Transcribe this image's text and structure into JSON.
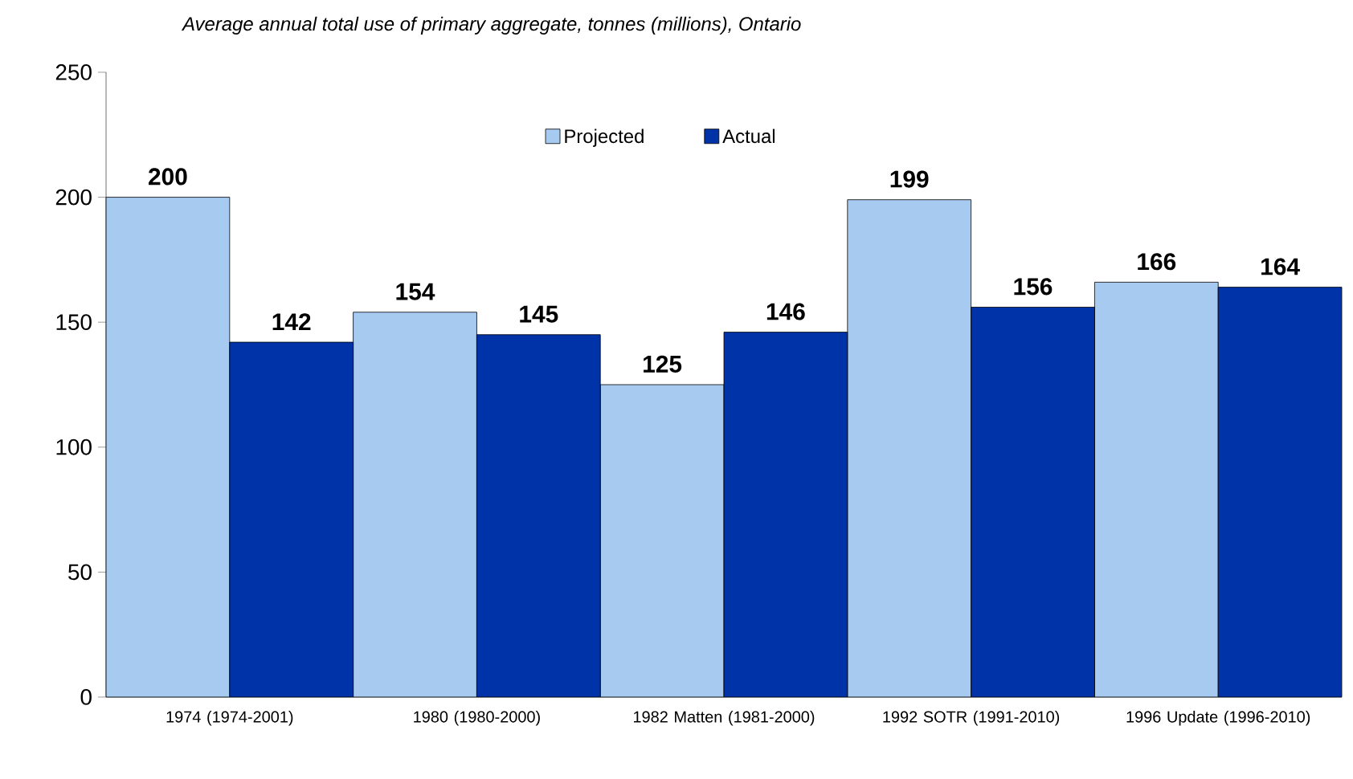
{
  "chart_data": {
    "type": "bar",
    "title": "Average annual total use of primary aggregate, tonnes (millions), Ontario",
    "categories": [
      "1974 (1974-2001)",
      "1980 (1980-2000)",
      "1982 Matten (1981-2000)",
      "1992 SOTR (1991-2010)",
      "1996 Update (1996-2010)"
    ],
    "series": [
      {
        "name": "Projected",
        "color": "#a6caf0",
        "values": [
          200,
          154,
          125,
          199,
          166
        ]
      },
      {
        "name": "Actual",
        "color": "#0033a8",
        "values": [
          142,
          145,
          146,
          156,
          164
        ]
      }
    ],
    "ylim": [
      0,
      250
    ],
    "yticks": [
      0,
      50,
      100,
      150,
      200,
      250
    ],
    "grid": false,
    "legend": "top",
    "data_labels": true
  }
}
